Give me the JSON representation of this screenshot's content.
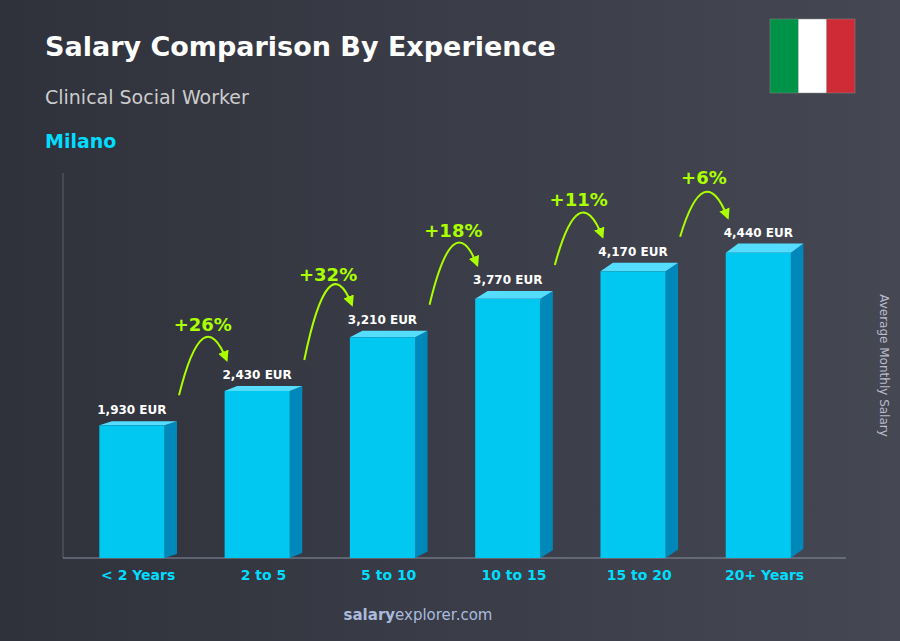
{
  "chart_data": {
    "type": "bar",
    "title": "Salary Comparison By Experience",
    "subtitle": "Clinical Social Worker",
    "city": "Milano",
    "y_label": "Average Monthly Salary",
    "categories": [
      "< 2 Years",
      "2 to 5",
      "5 to 10",
      "10 to 15",
      "15 to 20",
      "20+ Years"
    ],
    "values": [
      1930,
      2430,
      3210,
      3770,
      4170,
      4440
    ],
    "value_labels": [
      "1,930 EUR",
      "2,430 EUR",
      "3,210 EUR",
      "3,770 EUR",
      "4,170 EUR",
      "4,440 EUR"
    ],
    "data_labels": true,
    "annotations": [
      "+26%",
      "+32%",
      "+18%",
      "+11%",
      "+6%"
    ],
    "watermark": [
      "salary",
      "explorer.com"
    ],
    "color": "#00c8f0",
    "ylim": [
      0,
      5600
    ],
    "grid": false,
    "tick_labels": "x"
  }
}
